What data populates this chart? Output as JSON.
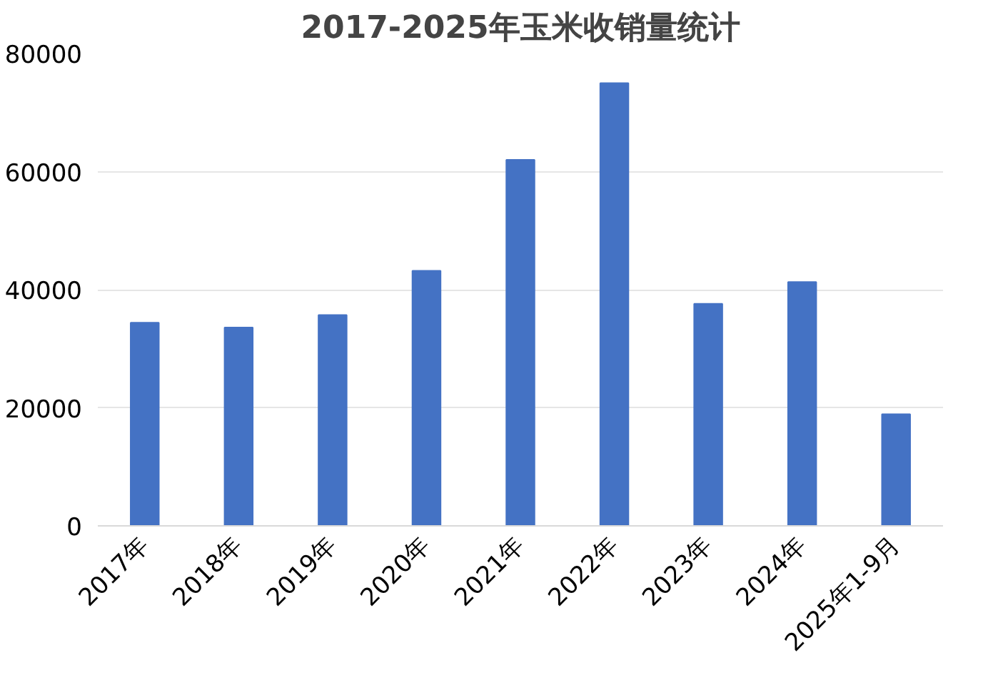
{
  "chart_data": {
    "type": "bar",
    "title": "2017-2025年玉米收销量统计",
    "categories": [
      "2017年",
      "2018年",
      "2019年",
      "2020年",
      "2021年",
      "2022年",
      "2023年",
      "2024年",
      "2025年1-9月"
    ],
    "values": [
      34400,
      33600,
      35700,
      43200,
      62000,
      75000,
      37600,
      41300,
      18900
    ],
    "color": "#4472c4",
    "ylim": [
      0,
      80000
    ],
    "yticks": [
      0,
      20000,
      40000,
      60000,
      80000
    ],
    "grid": "y"
  }
}
